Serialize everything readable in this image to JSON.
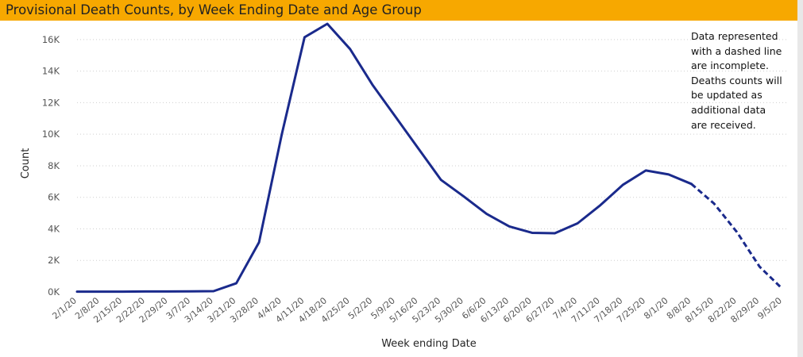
{
  "title": "Provisional Death Counts, by Week Ending Date and Age Group",
  "note_lines": [
    "Data represented",
    "with a dashed line",
    "are incomplete.",
    "Deaths counts will",
    "be updated as",
    "additional data",
    "are received."
  ],
  "colors": {
    "title_bar": "#f7a800",
    "line": "#1a2a8c",
    "grid": "#cfcfcf"
  },
  "chart_data": {
    "type": "line",
    "title": "",
    "xlabel": "Week ending Date",
    "ylabel": "Count",
    "ylim": [
      0,
      17000
    ],
    "y_ticks": [
      0,
      2000,
      4000,
      6000,
      8000,
      10000,
      12000,
      14000,
      16000
    ],
    "y_tick_labels": [
      "0K",
      "2K",
      "4K",
      "6K",
      "8K",
      "10K",
      "12K",
      "14K",
      "16K"
    ],
    "grid": true,
    "x": [
      "2/1/20",
      "2/8/20",
      "2/15/20",
      "2/22/20",
      "2/29/20",
      "3/7/20",
      "3/14/20",
      "3/21/20",
      "3/28/20",
      "4/4/20",
      "4/11/20",
      "4/18/20",
      "4/25/20",
      "5/2/20",
      "5/9/20",
      "5/16/20",
      "5/23/20",
      "5/30/20",
      "6/6/20",
      "6/13/20",
      "6/20/20",
      "6/27/20",
      "7/4/20",
      "7/11/20",
      "7/18/20",
      "7/25/20",
      "8/1/20",
      "8/8/20",
      "8/15/20",
      "8/22/20",
      "8/29/20",
      "9/5/20"
    ],
    "series": [
      {
        "values": [
          20,
          20,
          20,
          30,
          30,
          40,
          50,
          550,
          3150,
          10000,
          16150,
          17000,
          15400,
          13100,
          11100,
          9100,
          7100,
          6050,
          4950,
          4150,
          3750,
          3720,
          4350,
          5500,
          6800,
          7700,
          7450,
          6850,
          5600,
          3800,
          1600,
          200
        ],
        "dashed_from_index": 27
      }
    ]
  }
}
